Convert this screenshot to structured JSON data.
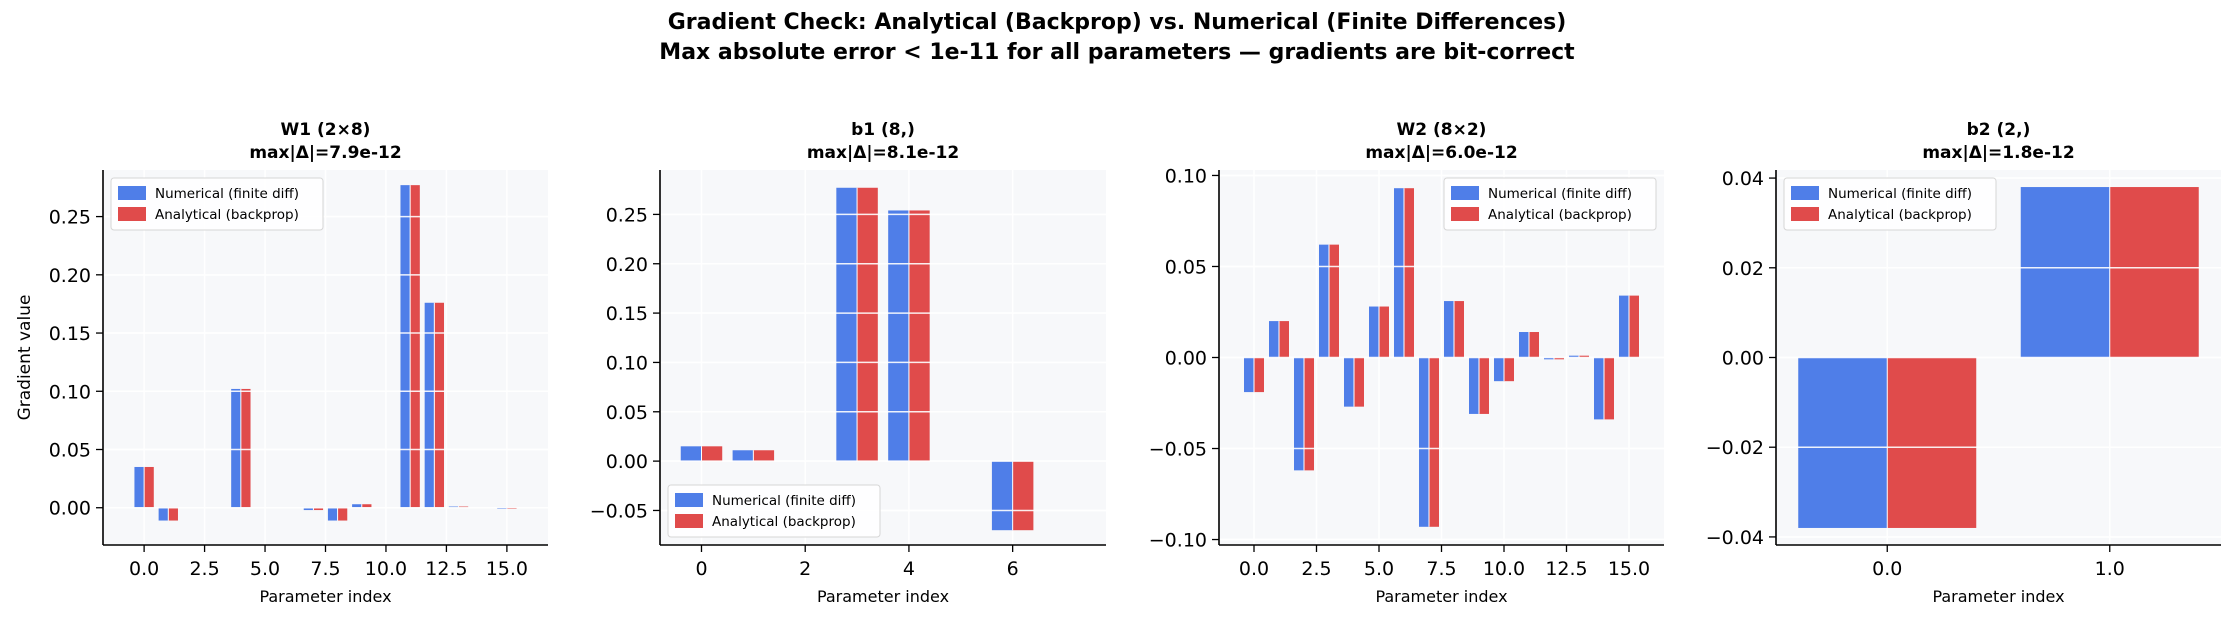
{
  "figure": {
    "title_line1": "Gradient Check: Analytical (Backprop) vs. Numerical (Finite Differences)",
    "title_line2": "Max absolute error < 1e-11 for all parameters — gradients are bit-correct"
  },
  "colors": {
    "numerical": "#4f7ee8",
    "analytical": "#e04b4b",
    "plot_bg": "#f7f8fa",
    "grid": "#ffffff"
  },
  "chart_data": [
    {
      "type": "bar",
      "title": "W1 (2×8)",
      "subtitle": "max|Δ|=7.9e-12",
      "xlabel": "Parameter index",
      "ylabel": "Gradient value",
      "xlim": [
        -1.7,
        16.7
      ],
      "ylim": [
        -0.032,
        0.29
      ],
      "xticks": [
        0,
        2.5,
        5,
        7.5,
        10,
        12.5,
        15
      ],
      "xtick_labels": [
        "0.0",
        "2.5",
        "5.0",
        "7.5",
        "10.0",
        "12.5",
        "15.0"
      ],
      "yticks": [
        0,
        0.05,
        0.1,
        0.15,
        0.2,
        0.25
      ],
      "ytick_labels": [
        "0.00",
        "0.05",
        "0.10",
        "0.15",
        "0.20",
        "0.25"
      ],
      "legend_loc": "top-left",
      "x": [
        0,
        1,
        2,
        3,
        4,
        5,
        6,
        7,
        8,
        9,
        10,
        11,
        12,
        13,
        14,
        15
      ],
      "series": [
        {
          "name": "Numerical (finite diff)",
          "values": [
            0.035,
            -0.011,
            0.0,
            0.0,
            0.102,
            0.0,
            0.0,
            -0.002,
            -0.011,
            0.003,
            0.0,
            0.277,
            0.176,
            0.001,
            0.0,
            -0.001
          ]
        },
        {
          "name": "Analytical (backprop)",
          "values": [
            0.035,
            -0.011,
            0.0,
            0.0,
            0.102,
            0.0,
            0.0,
            -0.002,
            -0.011,
            0.003,
            0.0,
            0.277,
            0.176,
            0.001,
            0.0,
            -0.001
          ]
        }
      ]
    },
    {
      "type": "bar",
      "title": "b1 (8,)",
      "subtitle": "max|Δ|=8.1e-12",
      "xlabel": "Parameter index",
      "ylabel": "",
      "xlim": [
        -0.8,
        7.8
      ],
      "ylim": [
        -0.085,
        0.295
      ],
      "xticks": [
        0,
        2,
        4,
        6
      ],
      "xtick_labels": [
        "0",
        "2",
        "4",
        "6"
      ],
      "yticks": [
        -0.05,
        0,
        0.05,
        0.1,
        0.15,
        0.2,
        0.25
      ],
      "ytick_labels": [
        "−0.05",
        "0.00",
        "0.05",
        "0.10",
        "0.15",
        "0.20",
        "0.25"
      ],
      "legend_loc": "bottom-left",
      "x": [
        0,
        1,
        2,
        3,
        4,
        5,
        6,
        7
      ],
      "series": [
        {
          "name": "Numerical (finite diff)",
          "values": [
            0.015,
            0.011,
            0.0,
            0.277,
            0.254,
            0.0,
            -0.07,
            0.0
          ]
        },
        {
          "name": "Analytical (backprop)",
          "values": [
            0.015,
            0.011,
            0.0,
            0.277,
            0.254,
            0.0,
            -0.07,
            0.0
          ]
        }
      ]
    },
    {
      "type": "bar",
      "title": "W2 (8×2)",
      "subtitle": "max|Δ|=6.0e-12",
      "xlabel": "Parameter index",
      "ylabel": "",
      "xlim": [
        -1.4,
        16.4
      ],
      "ylim": [
        -0.103,
        0.103
      ],
      "xticks": [
        0,
        2.5,
        5,
        7.5,
        10,
        12.5,
        15
      ],
      "xtick_labels": [
        "0.0",
        "2.5",
        "5.0",
        "7.5",
        "10.0",
        "12.5",
        "15.0"
      ],
      "yticks": [
        -0.1,
        -0.05,
        0,
        0.05,
        0.1
      ],
      "ytick_labels": [
        "−0.10",
        "−0.05",
        "0.00",
        "0.05",
        "0.10"
      ],
      "legend_loc": "top-right",
      "x": [
        0,
        1,
        2,
        3,
        4,
        5,
        6,
        7,
        8,
        9,
        10,
        11,
        12,
        13,
        14,
        15
      ],
      "series": [
        {
          "name": "Numerical (finite diff)",
          "values": [
            -0.019,
            0.02,
            -0.062,
            0.062,
            -0.027,
            0.028,
            0.093,
            -0.093,
            0.031,
            -0.031,
            -0.013,
            0.014,
            -0.001,
            0.001,
            -0.034,
            0.034
          ]
        },
        {
          "name": "Analytical (backprop)",
          "values": [
            -0.019,
            0.02,
            -0.062,
            0.062,
            -0.027,
            0.028,
            0.093,
            -0.093,
            0.031,
            -0.031,
            -0.013,
            0.014,
            -0.001,
            0.001,
            -0.034,
            0.034
          ]
        }
      ]
    },
    {
      "type": "bar",
      "title": "b2 (2,)",
      "subtitle": "max|Δ|=1.8e-12",
      "xlabel": "Parameter index",
      "ylabel": "",
      "xlim": [
        -0.5,
        1.5
      ],
      "ylim": [
        -0.0418,
        0.0418
      ],
      "xticks": [
        0,
        1
      ],
      "xtick_labels": [
        "0.0",
        "1.0"
      ],
      "yticks": [
        -0.04,
        -0.02,
        0,
        0.02,
        0.04
      ],
      "ytick_labels": [
        "−0.04",
        "−0.02",
        "0.00",
        "0.02",
        "0.04"
      ],
      "legend_loc": "top-left",
      "x": [
        0,
        1
      ],
      "series": [
        {
          "name": "Numerical (finite diff)",
          "values": [
            -0.038,
            0.038
          ]
        },
        {
          "name": "Analytical (backprop)",
          "values": [
            -0.038,
            0.038
          ]
        }
      ]
    }
  ]
}
